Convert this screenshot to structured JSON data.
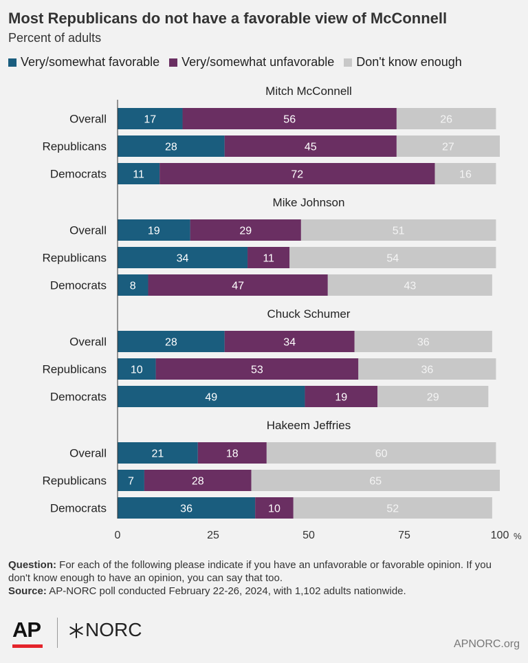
{
  "title": "Most Republicans do not have a favorable view of McConnell",
  "subtitle": "Percent of adults",
  "colors": {
    "favorable": "#1a5d7e",
    "unfavorable": "#6a2f62",
    "dont_know": "#c8c8c8",
    "background": "#f2f2f2"
  },
  "chart_data": {
    "type": "bar",
    "orientation": "horizontal",
    "stacked": true,
    "series_names": [
      "Very/somewhat favorable",
      "Very/somewhat unfavorable",
      "Don't know enough"
    ],
    "groups": [
      {
        "name": "Mitch McConnell",
        "rows": [
          {
            "label": "Overall",
            "values": [
              17,
              56,
              26
            ]
          },
          {
            "label": "Republicans",
            "values": [
              28,
              45,
              27
            ]
          },
          {
            "label": "Democrats",
            "values": [
              11,
              72,
              16
            ]
          }
        ]
      },
      {
        "name": "Mike Johnson",
        "rows": [
          {
            "label": "Overall",
            "values": [
              19,
              29,
              51
            ]
          },
          {
            "label": "Republicans",
            "values": [
              34,
              11,
              54
            ]
          },
          {
            "label": "Democrats",
            "values": [
              8,
              47,
              43
            ]
          }
        ]
      },
      {
        "name": "Chuck Schumer",
        "rows": [
          {
            "label": "Overall",
            "values": [
              28,
              34,
              36
            ]
          },
          {
            "label": "Republicans",
            "values": [
              10,
              53,
              36
            ]
          },
          {
            "label": "Democrats",
            "values": [
              49,
              19,
              29
            ]
          }
        ]
      },
      {
        "name": "Hakeem Jeffries",
        "rows": [
          {
            "label": "Overall",
            "values": [
              21,
              18,
              60
            ]
          },
          {
            "label": "Republicans",
            "values": [
              7,
              28,
              65
            ]
          },
          {
            "label": "Democrats",
            "values": [
              36,
              10,
              52
            ]
          }
        ]
      }
    ],
    "xlim": [
      0,
      100
    ],
    "xticks": [
      0,
      25,
      50,
      75,
      100
    ],
    "xtick_labels": [
      "0",
      "25",
      "50",
      "75",
      "100"
    ],
    "x_unit": "%"
  },
  "footer": {
    "question_label": "Question:",
    "question_text": "For each of the following please indicate if you have an unfavorable or favorable opinion. If you don't know enough to have an opinion, you can say that too.",
    "source_label": "Source:",
    "source_text": "AP-NORC poll conducted February 22-26, 2024, with 1,102 adults nationwide."
  },
  "logos": {
    "ap": "AP",
    "norc": "NORC"
  },
  "site": "APNORC.org"
}
